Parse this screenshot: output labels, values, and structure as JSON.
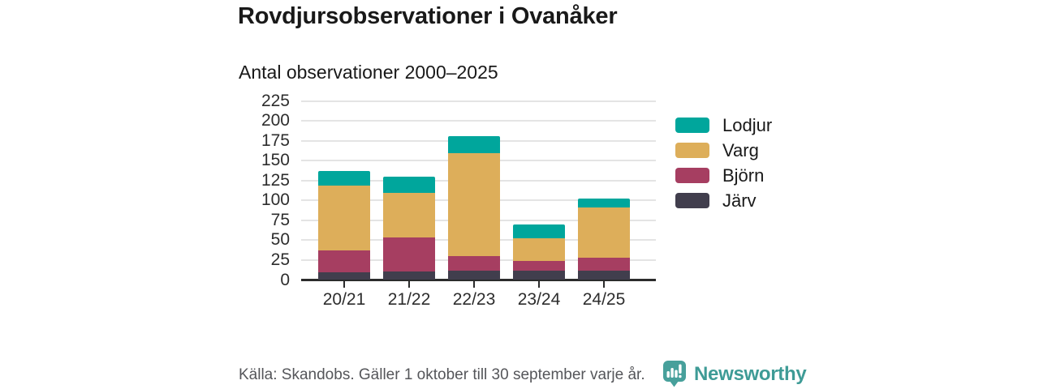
{
  "header": {
    "title": "Rovdjursobservationer i Ovanåker",
    "subtitle": "Antal observationer 2000–2025"
  },
  "chart_data": {
    "type": "bar",
    "stacked": true,
    "title": "Rovdjursobservationer i Ovanåker",
    "subtitle": "Antal observationer 2000–2025",
    "categories": [
      "20/21",
      "21/22",
      "22/23",
      "23/24",
      "24/25"
    ],
    "series": [
      {
        "name": "Järv",
        "color": "#413e4d",
        "values": [
          10,
          11,
          12,
          12,
          12
        ]
      },
      {
        "name": "Björn",
        "color": "#a63e61",
        "values": [
          27,
          42,
          18,
          12,
          16
        ]
      },
      {
        "name": "Varg",
        "color": "#ddae5a",
        "values": [
          82,
          56,
          129,
          28,
          63
        ]
      },
      {
        "name": "Lodjur",
        "color": "#00a69c",
        "values": [
          18,
          21,
          22,
          18,
          11
        ]
      }
    ],
    "totals": [
      137,
      130,
      181,
      70,
      102
    ],
    "legend_order": [
      "Lodjur",
      "Varg",
      "Björn",
      "Järv"
    ],
    "legend_position": "right",
    "ylim": [
      0,
      225
    ],
    "yticks": [
      0,
      25,
      50,
      75,
      100,
      125,
      150,
      175,
      200,
      225
    ],
    "xlabel": "",
    "ylabel": "",
    "grid": true
  },
  "footer": {
    "source": "Källa: Skandobs. Gäller 1 oktober till 30 september varje år.",
    "brand": "Newsworthy",
    "brand_color": "#3e9b96"
  }
}
